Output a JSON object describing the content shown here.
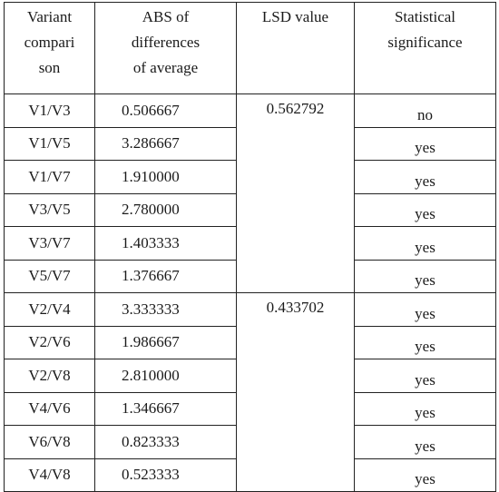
{
  "table": {
    "headers": {
      "variant": [
        "Variant",
        "compari",
        "son"
      ],
      "abs": [
        "ABS of",
        "differences",
        "of average"
      ],
      "lsd": [
        "LSD value"
      ],
      "significance": [
        "Statistical",
        "significance"
      ]
    },
    "groups": [
      {
        "lsd": "0.562792",
        "rows": [
          {
            "comparison": "V1/V3",
            "abs": "0.506667",
            "significance": "no"
          },
          {
            "comparison": "V1/V5",
            "abs": "3.286667",
            "significance": "yes"
          },
          {
            "comparison": "V1/V7",
            "abs": "1.910000",
            "significance": "yes"
          },
          {
            "comparison": "V3/V5",
            "abs": "2.780000",
            "significance": "yes"
          },
          {
            "comparison": "V3/V7",
            "abs": "1.403333",
            "significance": "yes"
          },
          {
            "comparison": "V5/V7",
            "abs": "1.376667",
            "significance": "yes"
          }
        ]
      },
      {
        "lsd": "0.433702",
        "rows": [
          {
            "comparison": "V2/V4",
            "abs": "3.333333",
            "significance": "yes"
          },
          {
            "comparison": "V2/V6",
            "abs": "1.986667",
            "significance": "yes"
          },
          {
            "comparison": "V2/V8",
            "abs": "2.810000",
            "significance": "yes"
          },
          {
            "comparison": "V4/V6",
            "abs": "1.346667",
            "significance": "yes"
          },
          {
            "comparison": "V6/V8",
            "abs": "0.823333",
            "significance": "yes"
          },
          {
            "comparison": "V4/V8",
            "abs": "0.523333",
            "significance": "yes"
          }
        ]
      }
    ]
  }
}
